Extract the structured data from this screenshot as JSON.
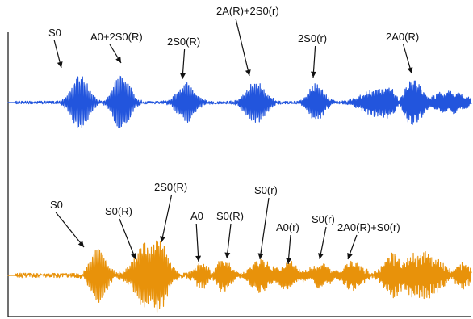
{
  "chart_data": [
    {
      "type": "line",
      "title": "",
      "xlabel": "",
      "ylabel": "",
      "grid": false,
      "legend": "none",
      "series": [
        {
          "color": "#2255dd",
          "packets": [
            {
              "center": 0.155,
              "amplitude": 0.95,
              "width": 0.018
            },
            {
              "center": 0.245,
              "amplitude": 1.0,
              "width": 0.017
            },
            {
              "center": 0.385,
              "amplitude": 0.68,
              "width": 0.018
            },
            {
              "center": 0.535,
              "amplitude": 0.72,
              "width": 0.02
            },
            {
              "center": 0.665,
              "amplitude": 0.66,
              "width": 0.016
            },
            {
              "center": 0.805,
              "amplitude": 0.52,
              "width": 0.035
            },
            {
              "center": 0.875,
              "amplitude": 0.72,
              "width": 0.025
            },
            {
              "center": 0.955,
              "amplitude": 0.38,
              "width": 0.03
            }
          ],
          "noise_level": 0.05,
          "baseline_from": 0.015
        },
        {
          "color": "#e8920a",
          "packets": [
            {
              "center": 0.195,
              "amplitude": 0.7,
              "width": 0.016
            },
            {
              "center": 0.285,
              "amplitude": 0.5,
              "width": 0.02
            },
            {
              "center": 0.32,
              "amplitude": 1.0,
              "width": 0.02
            },
            {
              "center": 0.42,
              "amplitude": 0.32,
              "width": 0.015
            },
            {
              "center": 0.465,
              "amplitude": 0.4,
              "width": 0.015
            },
            {
              "center": 0.545,
              "amplitude": 0.42,
              "width": 0.02
            },
            {
              "center": 0.605,
              "amplitude": 0.34,
              "width": 0.018
            },
            {
              "center": 0.675,
              "amplitude": 0.28,
              "width": 0.02
            },
            {
              "center": 0.745,
              "amplitude": 0.36,
              "width": 0.02
            },
            {
              "center": 0.835,
              "amplitude": 0.58,
              "width": 0.022
            },
            {
              "center": 0.9,
              "amplitude": 0.6,
              "width": 0.03
            },
            {
              "center": 0.98,
              "amplitude": 0.32,
              "width": 0.02
            }
          ],
          "noise_level": 0.06,
          "baseline_from": 0.015
        }
      ],
      "annotations": [
        {
          "text": "S0",
          "series": 0,
          "target": 0.13
        },
        {
          "text": "A0+2S0(R)",
          "series": 0,
          "target": 0.255
        },
        {
          "text": "2S0(R)",
          "series": 0,
          "target": 0.39
        },
        {
          "text": "2A(R)+2S0(r)",
          "series": 0,
          "target": 0.525
        },
        {
          "text": "2S0(r)",
          "series": 0,
          "target": 0.665
        },
        {
          "text": "2A0(R)",
          "series": 0,
          "target": 0.87
        },
        {
          "text": "S0",
          "series": 1,
          "target": 0.18
        },
        {
          "text": "S0(R)",
          "series": 1,
          "target": 0.29
        },
        {
          "text": "2S0(R)",
          "series": 1,
          "target": 0.34
        },
        {
          "text": "A0",
          "series": 1,
          "target": 0.425
        },
        {
          "text": "S0(R)",
          "series": 1,
          "target": 0.48
        },
        {
          "text": "S0(r)",
          "series": 1,
          "target": 0.545
        },
        {
          "text": "A0(r)",
          "series": 1,
          "target": 0.61
        },
        {
          "text": "S0(r)",
          "series": 1,
          "target": 0.68
        },
        {
          "text": "2A0(R)+S0(r)",
          "series": 1,
          "target": 0.735
        }
      ]
    }
  ]
}
